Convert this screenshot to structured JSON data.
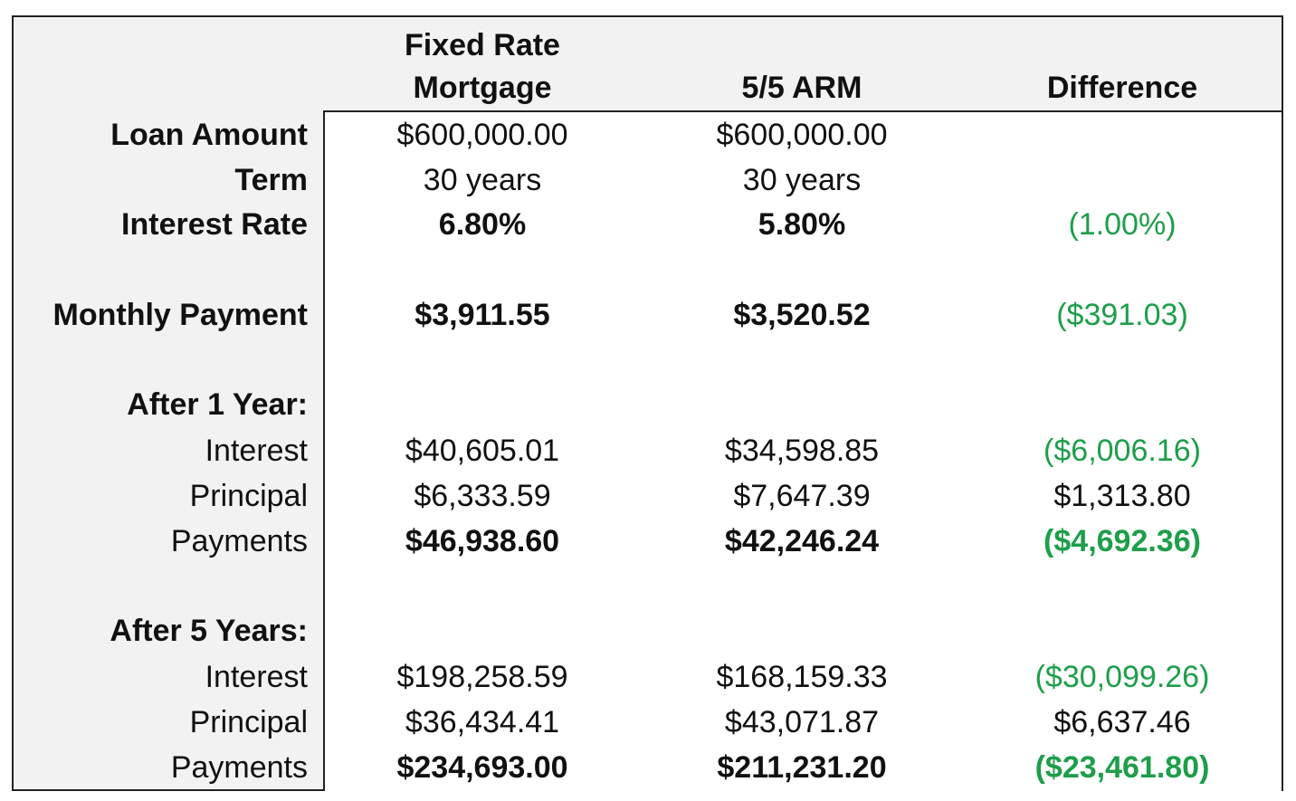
{
  "header": {
    "columns": [
      {
        "lines": [
          "Fixed Rate",
          "Mortgage"
        ]
      },
      {
        "lines": [
          "5/5 ARM"
        ]
      },
      {
        "lines": [
          "Difference"
        ]
      }
    ]
  },
  "table": {
    "rows": [
      {
        "label": "Loan Amount",
        "values": [
          "$600,000.00",
          "$600,000.00"
        ]
      },
      {
        "label": "Term",
        "values": [
          "30 years",
          "30 years"
        ]
      },
      {
        "label": "Interest Rate",
        "values": [
          "6.80%",
          "5.80%"
        ],
        "difference": "(1.00%)"
      },
      {
        "label": "Monthly Payment",
        "values": [
          "$3,911.55",
          "$3,520.52"
        ],
        "difference": "($391.03)"
      },
      {
        "label": "After 1 Year:"
      },
      {
        "label": "Interest",
        "values": [
          "$40,605.01",
          "$34,598.85"
        ],
        "difference": "($6,006.16)"
      },
      {
        "label": "Principal",
        "values": [
          "$6,333.59",
          "$7,647.39"
        ],
        "difference": "$1,313.80"
      },
      {
        "label": "Payments",
        "values": [
          "$46,938.60",
          "$42,246.24"
        ],
        "difference": "($4,692.36)"
      },
      {
        "label": "After 5 Years:"
      },
      {
        "label": "Interest",
        "values": [
          "$198,258.59",
          "$168,159.33"
        ],
        "difference": "($30,099.26)"
      },
      {
        "label": "Principal",
        "values": [
          "$36,434.41",
          "$43,071.87"
        ],
        "difference": "$6,637.46"
      },
      {
        "label": "Payments",
        "values": [
          "$234,693.00",
          "$211,231.20"
        ],
        "difference": "($23,461.80)"
      }
    ]
  }
}
